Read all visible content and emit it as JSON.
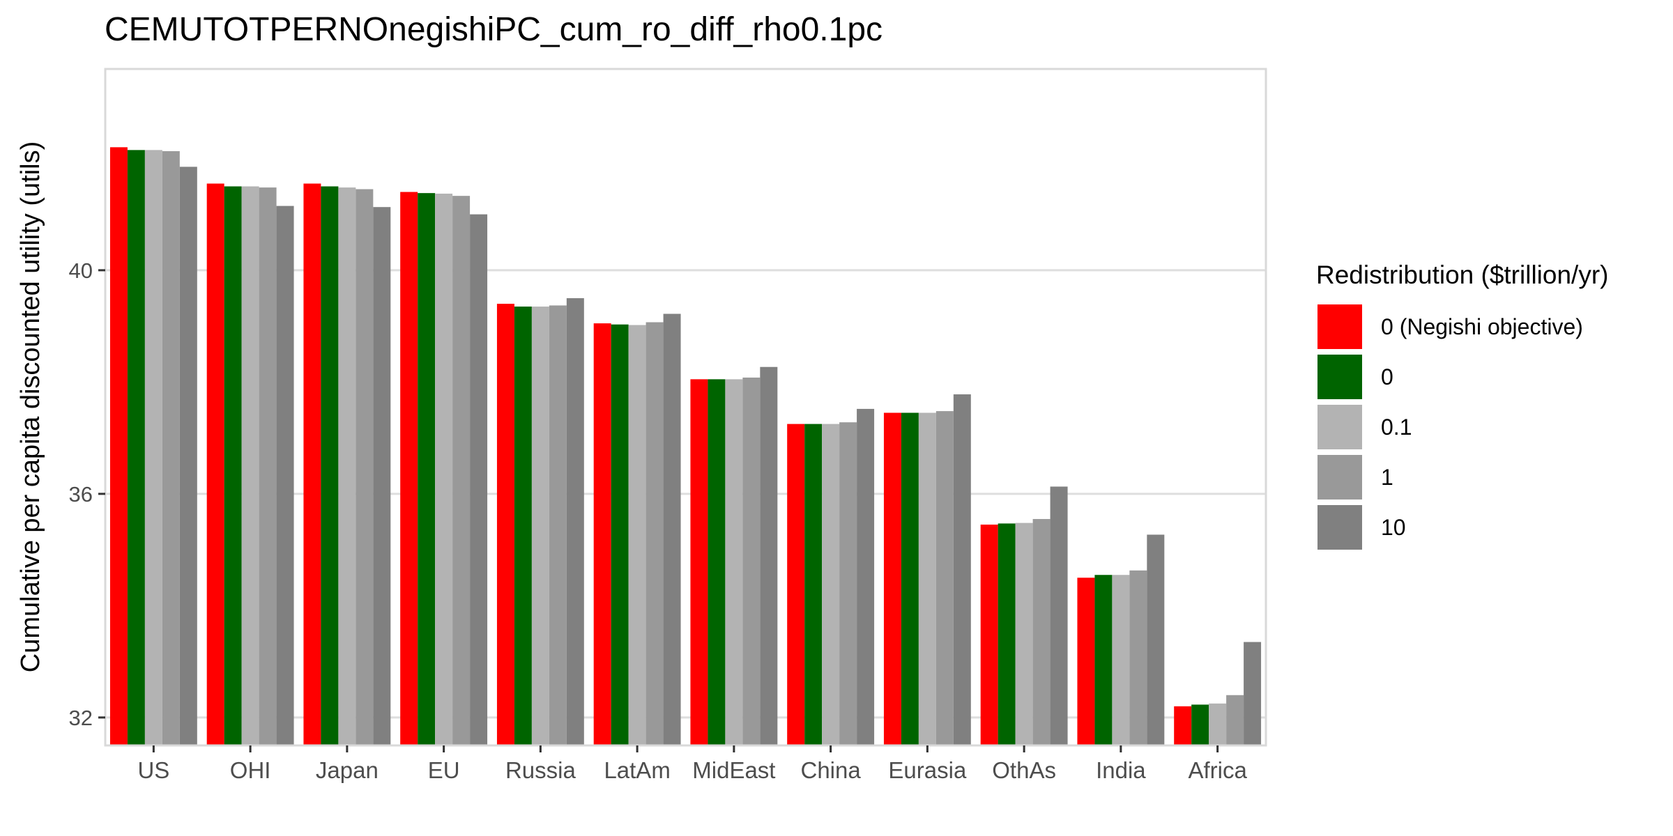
{
  "chart_data": {
    "type": "bar",
    "title": "CEMUTOTPERNOnegishiPC_cum_ro_diff_rho0.1pc",
    "xlabel": "",
    "ylabel": "Cumulative per capita discounted utility (utils)",
    "ylim": [
      31.5,
      43.6
    ],
    "yticks": [
      32,
      36,
      40
    ],
    "grid": true,
    "legend_position": "right",
    "legend_title": "Redistribution ($trillion/yr)",
    "categories": [
      "US",
      "OHI",
      "Japan",
      "EU",
      "Russia",
      "LatAm",
      "MidEast",
      "China",
      "Eurasia",
      "OthAs",
      "India",
      "Africa"
    ],
    "series": [
      {
        "name": "0 (Negishi objective)",
        "color": "#ff0000",
        "values": [
          42.2,
          41.55,
          41.55,
          41.4,
          39.4,
          39.05,
          38.05,
          37.25,
          37.45,
          35.45,
          34.5,
          32.2
        ]
      },
      {
        "name": "0",
        "color": "#006400",
        "values": [
          42.15,
          41.5,
          41.5,
          41.38,
          39.35,
          39.03,
          38.05,
          37.25,
          37.45,
          35.47,
          34.55,
          32.23
        ]
      },
      {
        "name": "0.1",
        "color": "#b3b3b3",
        "values": [
          42.15,
          41.5,
          41.48,
          41.37,
          39.35,
          39.02,
          38.05,
          37.25,
          37.45,
          35.48,
          34.55,
          32.25
        ]
      },
      {
        "name": "1",
        "color": "#999999",
        "values": [
          42.13,
          41.48,
          41.45,
          41.33,
          39.37,
          39.07,
          38.08,
          37.28,
          37.48,
          35.55,
          34.63,
          32.4
        ]
      },
      {
        "name": "10",
        "color": "#808080",
        "values": [
          41.85,
          41.15,
          41.13,
          41.0,
          39.5,
          39.22,
          38.27,
          37.52,
          37.78,
          36.13,
          35.27,
          33.35
        ]
      }
    ]
  }
}
